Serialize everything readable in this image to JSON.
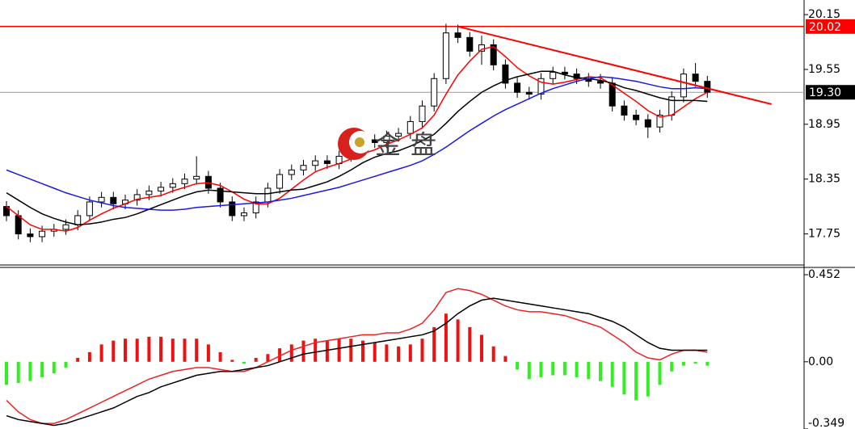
{
  "chart_data": [
    {
      "type": "candlestick",
      "open": [
        18.05,
        17.95,
        17.75,
        17.72,
        17.78,
        17.8,
        17.85,
        17.95,
        18.1,
        18.15,
        18.08,
        18.12,
        18.18,
        18.22,
        18.26,
        18.3,
        18.35,
        18.38,
        18.25,
        18.1,
        17.95,
        17.98,
        18.1,
        18.25,
        18.4,
        18.45,
        18.5,
        18.55,
        18.52,
        18.6,
        18.7,
        18.78,
        18.75,
        18.82,
        18.85,
        18.98,
        19.15,
        19.45,
        19.95,
        19.9,
        19.75,
        19.82,
        19.6,
        19.4,
        19.3,
        19.28,
        19.45,
        19.52,
        19.5,
        19.45,
        19.42,
        19.4,
        19.15,
        19.05,
        19.0,
        18.92,
        19.05,
        19.25,
        19.5,
        19.42
      ],
      "high": [
        18.11,
        18.01,
        17.81,
        17.84,
        17.86,
        17.91,
        18.01,
        18.16,
        18.21,
        18.21,
        18.18,
        18.24,
        18.28,
        18.32,
        18.36,
        18.41,
        18.6,
        18.44,
        18.31,
        18.16,
        18.04,
        18.16,
        18.31,
        18.46,
        18.51,
        18.56,
        18.61,
        18.61,
        18.66,
        18.76,
        18.84,
        18.84,
        18.88,
        18.91,
        19.04,
        19.21,
        19.51,
        20.05,
        20.04,
        19.96,
        19.92,
        19.88,
        19.66,
        19.46,
        19.36,
        19.51,
        19.58,
        19.58,
        19.56,
        19.51,
        19.5,
        19.46,
        19.21,
        19.11,
        19.06,
        19.11,
        19.31,
        19.56,
        19.62,
        19.48
      ],
      "low": [
        17.89,
        17.69,
        17.66,
        17.66,
        17.72,
        17.74,
        17.79,
        17.89,
        18.04,
        18.02,
        18.02,
        18.06,
        18.12,
        18.16,
        18.2,
        18.24,
        18.29,
        18.19,
        18.04,
        17.89,
        17.89,
        17.92,
        18.04,
        18.19,
        18.34,
        18.39,
        18.44,
        18.46,
        18.46,
        18.54,
        18.64,
        18.69,
        18.69,
        18.76,
        18.79,
        18.92,
        19.09,
        19.39,
        19.84,
        19.69,
        19.6,
        19.54,
        19.34,
        19.24,
        19.22,
        19.22,
        19.39,
        19.44,
        19.39,
        19.36,
        19.34,
        19.09,
        18.99,
        18.94,
        18.8,
        18.86,
        18.99,
        19.19,
        19.36,
        19.24
      ],
      "close": [
        17.95,
        17.75,
        17.72,
        17.78,
        17.8,
        17.85,
        17.95,
        18.1,
        18.15,
        18.08,
        18.12,
        18.18,
        18.22,
        18.26,
        18.3,
        18.35,
        18.38,
        18.25,
        18.1,
        17.95,
        17.98,
        18.1,
        18.25,
        18.4,
        18.45,
        18.5,
        18.55,
        18.52,
        18.6,
        18.7,
        18.78,
        18.75,
        18.82,
        18.85,
        18.98,
        19.15,
        19.45,
        19.95,
        19.9,
        19.75,
        19.82,
        19.6,
        19.4,
        19.3,
        19.28,
        19.45,
        19.52,
        19.5,
        19.45,
        19.42,
        19.4,
        19.15,
        19.05,
        19.0,
        18.92,
        19.05,
        19.25,
        19.5,
        19.42,
        19.3
      ],
      "up_color": "#ffffff",
      "down_color": "#000000",
      "series": [
        {
          "color": "#ff0000",
          "values": [
            18.05,
            17.95,
            17.85,
            17.8,
            17.8,
            17.78,
            17.82,
            17.9,
            17.97,
            18.03,
            18.08,
            18.13,
            18.15,
            18.17,
            18.22,
            18.26,
            18.3,
            18.31,
            18.28,
            18.21,
            18.13,
            18.08,
            18.08,
            18.14,
            18.24,
            18.34,
            18.43,
            18.48,
            18.52,
            18.57,
            18.63,
            18.67,
            18.73,
            18.78,
            18.84,
            18.91,
            19.05,
            19.28,
            19.49,
            19.64,
            19.77,
            19.8,
            19.69,
            19.57,
            19.48,
            19.41,
            19.39,
            19.41,
            19.44,
            19.47,
            19.46,
            19.38,
            19.29,
            19.2,
            19.1,
            19.03,
            19.05,
            19.14,
            19.23,
            19.3
          ]
        },
        {
          "color": "#000000",
          "values": [
            18.2,
            18.12,
            18.04,
            17.97,
            17.92,
            17.88,
            17.85,
            17.86,
            17.88,
            17.91,
            17.93,
            17.97,
            18.02,
            18.07,
            18.12,
            18.17,
            18.21,
            18.23,
            18.22,
            18.21,
            18.2,
            18.19,
            18.19,
            18.21,
            18.23,
            18.24,
            18.28,
            18.32,
            18.38,
            18.45,
            18.53,
            18.59,
            18.63,
            18.66,
            18.71,
            18.77,
            18.84,
            18.96,
            19.09,
            19.2,
            19.3,
            19.37,
            19.43,
            19.47,
            19.5,
            19.53,
            19.53,
            19.49,
            19.46,
            19.45,
            19.43,
            19.4,
            19.35,
            19.32,
            19.28,
            19.24,
            19.21,
            19.21,
            19.21,
            19.2
          ]
        },
        {
          "color": "#1a1ae6",
          "values": [
            18.45,
            18.4,
            18.35,
            18.3,
            18.25,
            18.2,
            18.16,
            18.12,
            18.09,
            18.06,
            18.04,
            18.03,
            18.02,
            18.01,
            18.01,
            18.02,
            18.04,
            18.05,
            18.06,
            18.07,
            18.08,
            18.09,
            18.1,
            18.12,
            18.14,
            18.17,
            18.2,
            18.23,
            18.26,
            18.3,
            18.34,
            18.38,
            18.42,
            18.46,
            18.5,
            18.55,
            18.62,
            18.7,
            18.79,
            18.88,
            18.96,
            19.04,
            19.11,
            19.17,
            19.23,
            19.29,
            19.34,
            19.38,
            19.42,
            19.45,
            19.47,
            19.46,
            19.44,
            19.42,
            19.39,
            19.36,
            19.34,
            19.34,
            19.35,
            19.34
          ]
        }
      ],
      "ylim": [
        17.41,
        20.31
      ],
      "yticks": [
        17.75,
        18.35,
        18.95,
        19.55,
        20.15
      ],
      "hlines": [
        {
          "value": 20.02,
          "label": "20.02",
          "color": "#ff0000"
        },
        {
          "value": 19.3,
          "label": "19.30",
          "color": "#000000"
        }
      ],
      "trendline": {
        "x": [
          38,
          64.4
        ],
        "y": [
          20.02,
          19.17
        ],
        "color": "#ff0000"
      },
      "watermark": "金盘"
    },
    {
      "type": "macd",
      "values": [
        -0.12,
        -0.11,
        -0.1,
        -0.08,
        -0.06,
        -0.03,
        0.02,
        0.05,
        0.09,
        0.11,
        0.12,
        0.12,
        0.13,
        0.13,
        0.12,
        0.12,
        0.12,
        0.09,
        0.05,
        0.01,
        -0.01,
        0.02,
        0.04,
        0.07,
        0.09,
        0.11,
        0.12,
        0.11,
        0.12,
        0.12,
        0.11,
        0.1,
        0.09,
        0.08,
        0.09,
        0.12,
        0.18,
        0.25,
        0.22,
        0.18,
        0.14,
        0.08,
        0.03,
        -0.04,
        -0.09,
        -0.08,
        -0.07,
        -0.07,
        -0.08,
        -0.09,
        -0.1,
        -0.13,
        -0.17,
        -0.2,
        -0.18,
        -0.12,
        -0.05,
        -0.02,
        -0.01,
        -0.02
      ],
      "positive_color": "#ee1111",
      "negative_color": "#33ee22",
      "series": [
        {
          "color": "#ee2222",
          "values": [
            -0.2,
            -0.26,
            -0.3,
            -0.32,
            -0.32,
            -0.3,
            -0.27,
            -0.24,
            -0.21,
            -0.18,
            -0.15,
            -0.12,
            -0.09,
            -0.07,
            -0.05,
            -0.04,
            -0.03,
            -0.03,
            -0.04,
            -0.05,
            -0.05,
            -0.03,
            0.0,
            0.03,
            0.06,
            0.08,
            0.1,
            0.11,
            0.12,
            0.13,
            0.14,
            0.14,
            0.15,
            0.15,
            0.17,
            0.2,
            0.27,
            0.36,
            0.38,
            0.37,
            0.35,
            0.32,
            0.29,
            0.27,
            0.26,
            0.26,
            0.25,
            0.24,
            0.22,
            0.2,
            0.18,
            0.14,
            0.1,
            0.05,
            0.02,
            0.01,
            0.04,
            0.06,
            0.06,
            0.05
          ]
        },
        {
          "color": "#000000",
          "values": [
            -0.28,
            -0.3,
            -0.31,
            -0.32,
            -0.33,
            -0.32,
            -0.3,
            -0.28,
            -0.26,
            -0.24,
            -0.21,
            -0.18,
            -0.16,
            -0.13,
            -0.11,
            -0.09,
            -0.07,
            -0.06,
            -0.05,
            -0.05,
            -0.04,
            -0.03,
            -0.02,
            0.0,
            0.02,
            0.04,
            0.05,
            0.06,
            0.07,
            0.08,
            0.09,
            0.1,
            0.11,
            0.12,
            0.13,
            0.14,
            0.16,
            0.2,
            0.25,
            0.29,
            0.32,
            0.33,
            0.32,
            0.31,
            0.3,
            0.29,
            0.28,
            0.27,
            0.26,
            0.25,
            0.23,
            0.21,
            0.18,
            0.14,
            0.1,
            0.07,
            0.06,
            0.06,
            0.06,
            0.06
          ]
        }
      ],
      "ylim": [
        -0.349,
        0.49
      ],
      "yticks": [
        0.452,
        {
          "value": 0,
          "label": "0.00"
        },
        -0.349
      ]
    }
  ]
}
